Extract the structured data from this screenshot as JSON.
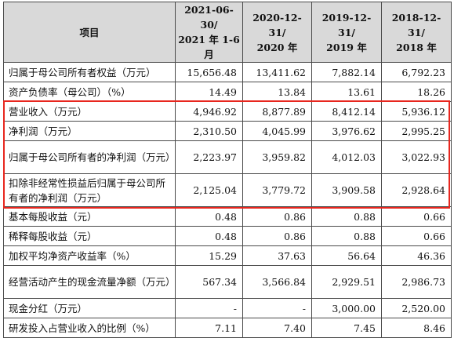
{
  "table": {
    "headers": [
      "项目",
      [
        "2021-06-30/",
        "2021 年 1-6 月"
      ],
      [
        "2020-12-31/",
        "2020 年"
      ],
      [
        "2019-12-31/",
        "2019 年"
      ],
      [
        "2018-12-31/",
        "2018 年"
      ]
    ],
    "rows": [
      {
        "label": "归属于母公司所有者权益（万元）",
        "values": [
          "15,656.48",
          "13,411.62",
          "7,882.14",
          "6,792.23"
        ]
      },
      {
        "label": "资产负债率（母公司）（%）",
        "values": [
          "14.49",
          "13.84",
          "13.61",
          "18.26"
        ]
      },
      {
        "label": "营业收入（万元）",
        "values": [
          "4,946.92",
          "8,877.89",
          "8,412.14",
          "5,936.12"
        ]
      },
      {
        "label": "净利润（万元）",
        "values": [
          "2,310.50",
          "4,045.99",
          "3,976.62",
          "2,995.25"
        ]
      },
      {
        "label": "归属于母公司所有者的净利润（万元）",
        "values": [
          "2,223.97",
          "3,959.82",
          "4,012.03",
          "3,022.93"
        ]
      },
      {
        "label": "扣除非经常性损益后归属于母公司所有者的净利润（万元）",
        "values": [
          "2,125.04",
          "3,779.72",
          "3,909.58",
          "2,928.64"
        ]
      },
      {
        "label": "基本每股收益（元）",
        "values": [
          "0.48",
          "0.86",
          "0.88",
          "0.66"
        ]
      },
      {
        "label": "稀释每股收益（元）",
        "values": [
          "0.48",
          "0.86",
          "0.88",
          "0.66"
        ]
      },
      {
        "label": "加权平均净资产收益率（%）",
        "values": [
          "15.29",
          "37.63",
          "56.64",
          "46.36"
        ]
      },
      {
        "label": "经营活动产生的现金流量净额（万元）",
        "values": [
          "567.34",
          "3,566.84",
          "2,929.51",
          "2,986.73"
        ]
      },
      {
        "label": "现金分红（万元）",
        "values": [
          "-",
          "-",
          "3,000.00",
          "2,520.00"
        ]
      },
      {
        "label": "研发投入占营业收入的比例（%）",
        "values": [
          "7.11",
          "7.40",
          "7.45",
          "8.46"
        ]
      }
    ]
  },
  "colors": {
    "header_bg": "#d9d9d9",
    "highlight_border": "#e8261e",
    "grid": "#4a4a4a"
  }
}
